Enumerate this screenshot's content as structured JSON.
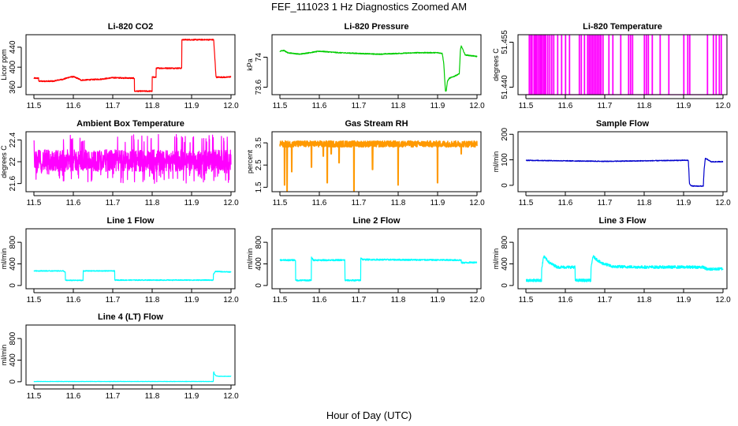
{
  "figure": {
    "title": "FEF_111023 1 Hz Diagnostics Zoomed AM",
    "xlabel": "Hour of Day (UTC)"
  },
  "chart_data": [
    {
      "type": "line",
      "title": "Li-820 CO2",
      "ylabel": "Licor ppm",
      "color": "#ff0000",
      "xlim": [
        11.48,
        12.01
      ],
      "ylim": [
        345,
        465
      ],
      "xticks": [
        "11.5",
        "11.6",
        "11.7",
        "11.8",
        "11.9",
        "12.0"
      ],
      "yticks": [
        360,
        400,
        440
      ],
      "x": [
        11.5,
        11.512,
        11.512,
        11.55,
        11.56,
        11.575,
        11.59,
        11.6,
        11.61,
        11.62,
        11.645,
        11.67,
        11.69,
        11.7,
        11.7,
        11.755,
        11.755,
        11.755,
        11.8,
        11.8,
        11.8,
        11.81,
        11.81,
        11.86,
        11.86,
        11.87,
        11.875,
        11.875,
        11.956,
        11.956,
        11.962,
        11.962,
        11.99,
        12.0
      ],
      "y": [
        378,
        378,
        372,
        372,
        374,
        376,
        380,
        381,
        378,
        374,
        375,
        376,
        378,
        379,
        379,
        378,
        352,
        352,
        352,
        380,
        380,
        380,
        398,
        398,
        398,
        398,
        398,
        455,
        455,
        455,
        380,
        380,
        380,
        381
      ],
      "noise": 1.2
    },
    {
      "type": "line",
      "title": "Li-820 Pressure",
      "ylabel": "kPa",
      "color": "#00cc00",
      "xlim": [
        11.48,
        12.01
      ],
      "ylim": [
        73.5,
        74.3
      ],
      "xticks": [
        "11.5",
        "11.6",
        "11.7",
        "11.8",
        "11.9",
        "12.0"
      ],
      "yticks": [
        73.6,
        74.0
      ],
      "x": [
        11.5,
        11.51,
        11.52,
        11.55,
        11.6,
        11.65,
        11.7,
        11.75,
        11.8,
        11.85,
        11.88,
        11.9,
        11.912,
        11.916,
        11.918,
        11.92,
        11.922,
        11.925,
        11.93,
        11.94,
        11.948,
        11.955,
        11.958,
        11.96,
        11.97,
        12.0
      ],
      "y": [
        74.08,
        74.09,
        74.06,
        74.04,
        74.08,
        74.06,
        74.05,
        74.04,
        74.05,
        74.06,
        74.06,
        74.06,
        74.05,
        73.9,
        73.7,
        73.55,
        73.55,
        73.68,
        73.72,
        73.74,
        73.76,
        73.78,
        74.1,
        74.15,
        74.03,
        74.01
      ],
      "noise": 0.006
    },
    {
      "type": "line",
      "title": "Li-820 Temperature",
      "ylabel": "degrees C",
      "color": "#ff00ff",
      "xlim": [
        11.48,
        12.01
      ],
      "ylim": [
        51.4375,
        51.4575
      ],
      "xticks": [
        "11.5",
        "11.6",
        "11.7",
        "11.8",
        "11.9",
        "12.0"
      ],
      "yticks": [
        "51.440",
        "51.455"
      ],
      "base": 51.4375,
      "high": 51.4575,
      "spikes": [
        11.508,
        11.512,
        11.515,
        11.52,
        11.523,
        11.526,
        11.53,
        11.534,
        11.537,
        11.54,
        11.544,
        11.547,
        11.55,
        11.555,
        11.56,
        11.565,
        11.57,
        11.58,
        11.59,
        11.6,
        11.61,
        11.635,
        11.64,
        11.648,
        11.656,
        11.66,
        11.664,
        11.668,
        11.672,
        11.676,
        11.68,
        11.684,
        11.688,
        11.69,
        11.695,
        11.71,
        11.72,
        11.74,
        11.76,
        11.765,
        11.77,
        11.8,
        11.805,
        11.81,
        11.82,
        11.84,
        11.862,
        11.9,
        11.91,
        11.915,
        11.96,
        11.975,
        11.982,
        11.99,
        11.995
      ]
    },
    {
      "type": "noisy",
      "title": "Ambient Box Temperature",
      "ylabel": "degrees C",
      "color": "#ff00ff",
      "xlim": [
        11.48,
        12.01
      ],
      "ylim": [
        21.45,
        22.55
      ],
      "xticks": [
        "11.5",
        "11.6",
        "11.7",
        "11.8",
        "11.9",
        "12.0"
      ],
      "yticks": [
        21.6,
        22.0,
        22.4
      ],
      "center": 22.02,
      "spread": 0.2,
      "low": 21.6,
      "high": 22.5
    },
    {
      "type": "line",
      "title": "Gas Stream RH",
      "ylabel": "percent",
      "color": "#ff9900",
      "xlim": [
        11.48,
        12.01
      ],
      "ylim": [
        1.3,
        4.0
      ],
      "xticks": [
        "11.5",
        "11.6",
        "11.7",
        "11.8",
        "11.9",
        "12.0"
      ],
      "yticks": [
        1.5,
        2.5,
        3.5
      ],
      "center": 3.45,
      "spread": 0.14,
      "dips": [
        [
          11.512,
          1.6
        ],
        [
          11.518,
          1.3
        ],
        [
          11.53,
          2.2
        ],
        [
          11.58,
          2.4
        ],
        [
          11.61,
          2.9
        ],
        [
          11.62,
          1.7
        ],
        [
          11.63,
          3.0
        ],
        [
          11.65,
          2.6
        ],
        [
          11.688,
          1.2
        ],
        [
          11.735,
          2.3
        ],
        [
          11.8,
          1.6
        ],
        [
          11.9,
          1.7
        ],
        [
          11.96,
          3.0
        ]
      ]
    },
    {
      "type": "line",
      "title": "Sample Flow",
      "ylabel": "ml/min",
      "color": "#0000cc",
      "xlim": [
        11.48,
        12.01
      ],
      "ylim": [
        -25,
        210
      ],
      "xticks": [
        "11.5",
        "11.6",
        "11.7",
        "11.8",
        "11.9",
        "12.0"
      ],
      "yticks": [
        0,
        100,
        200
      ],
      "x": [
        11.5,
        11.55,
        11.6,
        11.65,
        11.7,
        11.75,
        11.8,
        11.85,
        11.9,
        11.912,
        11.915,
        11.92,
        11.925,
        11.95,
        11.952,
        11.955,
        11.96,
        11.97,
        12.0
      ],
      "y": [
        98,
        97,
        96,
        95,
        94,
        95,
        96,
        97,
        98,
        98,
        5,
        -2,
        -3,
        -3,
        60,
        105,
        102,
        92,
        93
      ],
      "noise": 1.5
    },
    {
      "type": "line",
      "title": "Line 1 Flow",
      "ylabel": "ml/min",
      "color": "#00ffff",
      "xlim": [
        11.48,
        12.01
      ],
      "ylim": [
        -60,
        1050
      ],
      "xticks": [
        "11.5",
        "11.6",
        "11.7",
        "11.8",
        "11.9",
        "12.0"
      ],
      "yticks": [
        0,
        400,
        800
      ],
      "x": [
        11.5,
        11.575,
        11.58,
        11.58,
        11.625,
        11.625,
        11.7,
        11.705,
        11.705,
        11.955,
        11.955,
        11.96,
        11.96,
        12.0
      ],
      "y": [
        270,
        270,
        240,
        95,
        95,
        270,
        270,
        270,
        100,
        100,
        200,
        260,
        260,
        250
      ],
      "noise": 8
    },
    {
      "type": "line",
      "title": "Line 2 Flow",
      "ylabel": "ml/min",
      "color": "#00ffff",
      "xlim": [
        11.48,
        12.01
      ],
      "ylim": [
        -60,
        1050
      ],
      "xticks": [
        "11.5",
        "11.6",
        "11.7",
        "11.8",
        "11.9",
        "12.0"
      ],
      "yticks": [
        0,
        400,
        800
      ],
      "x": [
        11.5,
        11.54,
        11.54,
        11.58,
        11.58,
        11.585,
        11.665,
        11.665,
        11.705,
        11.705,
        11.71,
        11.96,
        11.96,
        12.0
      ],
      "y": [
        470,
        470,
        95,
        95,
        520,
        470,
        470,
        95,
        95,
        520,
        480,
        470,
        420,
        430
      ],
      "noise": 14
    },
    {
      "type": "line",
      "title": "Line 3 Flow",
      "ylabel": "ml/min",
      "color": "#00ffff",
      "xlim": [
        11.48,
        12.01
      ],
      "ylim": [
        -60,
        1050
      ],
      "xticks": [
        "11.5",
        "11.6",
        "11.7",
        "11.8",
        "11.9",
        "12.0"
      ],
      "yticks": [
        0,
        400,
        800
      ],
      "x": [
        11.5,
        11.54,
        11.54,
        11.545,
        11.56,
        11.58,
        11.625,
        11.625,
        11.665,
        11.665,
        11.67,
        11.69,
        11.72,
        11.8,
        11.95,
        11.96,
        12.0
      ],
      "y": [
        95,
        95,
        300,
        540,
        420,
        340,
        340,
        95,
        95,
        300,
        540,
        420,
        350,
        340,
        340,
        300,
        310
      ],
      "noise": 26
    },
    {
      "type": "line",
      "title": "Line 4 (LT) Flow",
      "ylabel": "ml/min",
      "color": "#00ffff",
      "xlim": [
        11.48,
        12.01
      ],
      "ylim": [
        -60,
        1050
      ],
      "xticks": [
        "11.5",
        "11.6",
        "11.7",
        "11.8",
        "11.9",
        "12.0"
      ],
      "yticks": [
        0,
        400,
        800
      ],
      "x": [
        11.5,
        11.6,
        11.7,
        11.8,
        11.9,
        11.955,
        11.956,
        11.958,
        11.962,
        11.97,
        12.0
      ],
      "y": [
        5,
        5,
        5,
        5,
        5,
        5,
        190,
        140,
        110,
        100,
        100
      ],
      "noise": 3
    }
  ]
}
